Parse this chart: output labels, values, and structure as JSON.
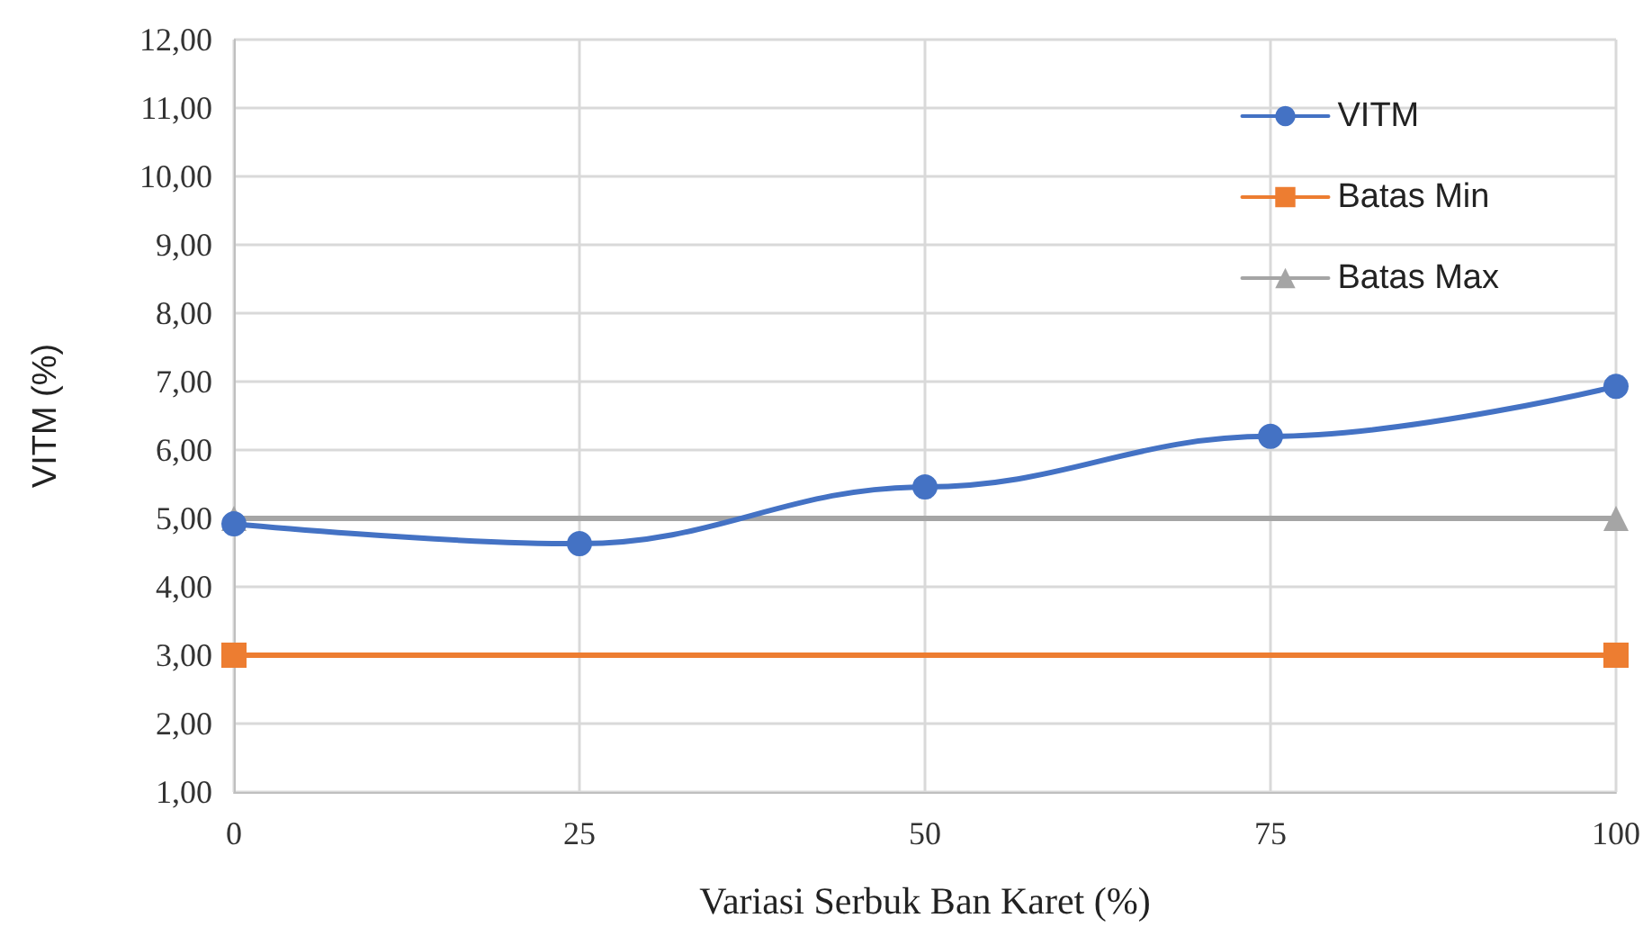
{
  "chart_data": {
    "type": "line",
    "xlabel": "Variasi Serbuk Ban Karet (%)",
    "ylabel": "VITM (%)",
    "series": [
      {
        "name": "VITM",
        "color": "#4472c4",
        "x": [
          0,
          25,
          50,
          75,
          100
        ],
        "values": [
          4.92,
          4.63,
          5.46,
          6.2,
          6.93
        ],
        "marker": "circle"
      },
      {
        "name": "Batas Min",
        "color": "#ed7d31",
        "x": [
          0,
          100
        ],
        "values": [
          3,
          3
        ],
        "marker": "square"
      },
      {
        "name": "Batas Max",
        "color": "#a5a5a5",
        "x": [
          0,
          100
        ],
        "values": [
          5,
          5
        ],
        "marker": "triangle"
      }
    ],
    "xlim": [
      0,
      100
    ],
    "xticks": [
      0,
      25,
      50,
      75,
      100
    ],
    "ylim": [
      1,
      12
    ],
    "yticks": [
      {
        "value": 1,
        "label": "1,00"
      },
      {
        "value": 2,
        "label": "2,00"
      },
      {
        "value": 3,
        "label": "3,00"
      },
      {
        "value": 4,
        "label": "4,00"
      },
      {
        "value": 5,
        "label": "5,00"
      },
      {
        "value": 6,
        "label": "6,00"
      },
      {
        "value": 7,
        "label": "7,00"
      },
      {
        "value": 8,
        "label": "8,00"
      },
      {
        "value": 9,
        "label": "9,00"
      },
      {
        "value": 10,
        "label": "10,00"
      },
      {
        "value": 11,
        "label": "11,00"
      },
      {
        "value": 12,
        "label": "12,00"
      }
    ],
    "grid": true,
    "legend": "top right",
    "line_style": "solid"
  }
}
